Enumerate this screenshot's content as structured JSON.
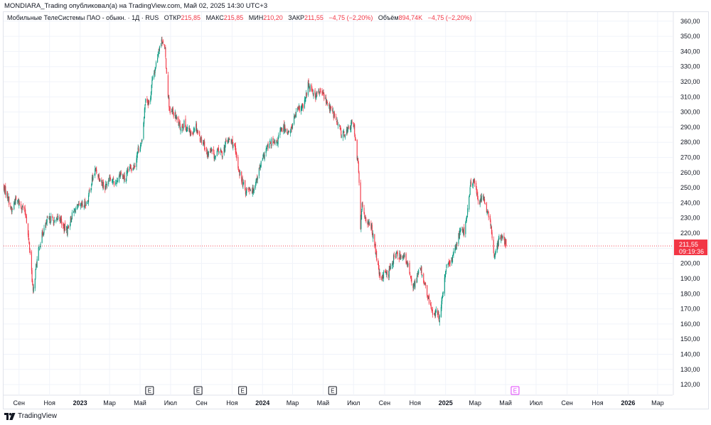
{
  "header": {
    "published": "MONDIARA_Trading опубликовал(а) на TradingView.com, Май 02, 2025 14:30 UTC+3"
  },
  "legend": {
    "symbol": "Мобильные ТелеСистемы ПАО - обыкн. · 1Д · RUS",
    "open_label": "ОТКР",
    "open": "215,85",
    "high_label": "МАКС",
    "high": "215,85",
    "low_label": "МИН",
    "low": "210,20",
    "close_label": "ЗАКР",
    "close": "211,55",
    "change": "−4,75 (−2,20%)",
    "volume_label": "Объём",
    "volume": "894,74K",
    "volume_change": "−4,75 (−2,20%)"
  },
  "price_label": {
    "price": "211,55",
    "countdown": "09:19:36"
  },
  "colors": {
    "up": "#089981",
    "down": "#f23645",
    "grid": "#f0f3fa",
    "earnings_future": "#e040fb"
  },
  "brand": {
    "name": "TradingView",
    "icon": "tradingview-logo-icon"
  },
  "chart_data": {
    "type": "candlestick",
    "title": "Мобильные ТелеСистемы ПАО - обыкн. · 1Д · RUS",
    "y_axis": {
      "ylim": [
        113,
        366
      ],
      "ticks": [
        120,
        130,
        140,
        150,
        160,
        170,
        180,
        190,
        200,
        210,
        220,
        230,
        240,
        250,
        260,
        270,
        280,
        290,
        300,
        310,
        320,
        330,
        340,
        350,
        360
      ],
      "tick_labels": [
        "120,00",
        "130,00",
        "140,00",
        "150,00",
        "160,00",
        "170,00",
        "180,00",
        "190,00",
        "200,00",
        "210,00",
        "220,00",
        "230,00",
        "240,00",
        "250,00",
        "260,00",
        "270,00",
        "280,00",
        "290,00",
        "300,00",
        "310,00",
        "320,00",
        "330,00",
        "340,00",
        "350,00",
        "360,00"
      ],
      "position": "right"
    },
    "x_axis": {
      "range": [
        "2022-08-01",
        "2026-03-31"
      ],
      "ticks": [
        {
          "date": "2022-09-01",
          "label": "Сен",
          "bold": false
        },
        {
          "date": "2022-11-01",
          "label": "Ноя",
          "bold": false
        },
        {
          "date": "2023-01-01",
          "label": "2023",
          "bold": true
        },
        {
          "date": "2023-03-01",
          "label": "Мар",
          "bold": false
        },
        {
          "date": "2023-05-01",
          "label": "Май",
          "bold": false
        },
        {
          "date": "2023-07-01",
          "label": "Июл",
          "bold": false
        },
        {
          "date": "2023-09-01",
          "label": "Сен",
          "bold": false
        },
        {
          "date": "2023-11-01",
          "label": "Ноя",
          "bold": false
        },
        {
          "date": "2024-01-01",
          "label": "2024",
          "bold": true
        },
        {
          "date": "2024-03-01",
          "label": "Мар",
          "bold": false
        },
        {
          "date": "2024-05-01",
          "label": "Май",
          "bold": false
        },
        {
          "date": "2024-07-01",
          "label": "Июл",
          "bold": false
        },
        {
          "date": "2024-09-01",
          "label": "Сен",
          "bold": false
        },
        {
          "date": "2024-11-01",
          "label": "Ноя",
          "bold": false
        },
        {
          "date": "2025-01-01",
          "label": "2025",
          "bold": true
        },
        {
          "date": "2025-03-01",
          "label": "Мар",
          "bold": false
        },
        {
          "date": "2025-05-01",
          "label": "Май",
          "bold": false
        },
        {
          "date": "2025-07-01",
          "label": "Июл",
          "bold": false
        },
        {
          "date": "2025-09-01",
          "label": "Сен",
          "bold": false
        },
        {
          "date": "2025-11-01",
          "label": "Ноя",
          "bold": false
        },
        {
          "date": "2026-01-01",
          "label": "2026",
          "bold": true
        },
        {
          "date": "2026-03-01",
          "label": "Мар",
          "bold": false
        }
      ]
    },
    "current_price": 211.55,
    "earnings_markers": [
      {
        "date": "2023-05-20",
        "label": "E",
        "future": false
      },
      {
        "date": "2023-08-25",
        "label": "E",
        "future": false
      },
      {
        "date": "2023-11-22",
        "label": "E",
        "future": false
      },
      {
        "date": "2024-05-20",
        "label": "E",
        "future": false
      },
      {
        "date": "2025-05-20",
        "label": "E",
        "future": true
      }
    ],
    "price_path": [
      [
        "2022-08-01",
        250
      ],
      [
        "2022-08-10",
        244
      ],
      [
        "2022-08-17",
        234
      ],
      [
        "2022-08-24",
        242
      ],
      [
        "2022-09-01",
        240
      ],
      [
        "2022-09-08",
        237
      ],
      [
        "2022-09-15",
        232
      ],
      [
        "2022-09-20",
        215
      ],
      [
        "2022-09-24",
        205
      ],
      [
        "2022-09-29",
        180
      ],
      [
        "2022-10-05",
        198
      ],
      [
        "2022-10-12",
        212
      ],
      [
        "2022-10-20",
        222
      ],
      [
        "2022-10-28",
        228
      ],
      [
        "2022-11-05",
        230
      ],
      [
        "2022-11-12",
        226
      ],
      [
        "2022-11-20",
        232
      ],
      [
        "2022-11-28",
        224
      ],
      [
        "2022-12-06",
        222
      ],
      [
        "2022-12-14",
        230
      ],
      [
        "2022-12-22",
        236
      ],
      [
        "2023-01-05",
        238
      ],
      [
        "2023-01-15",
        240
      ],
      [
        "2023-01-25",
        255
      ],
      [
        "2023-02-01",
        262
      ],
      [
        "2023-02-10",
        256
      ],
      [
        "2023-02-20",
        250
      ],
      [
        "2023-03-01",
        258
      ],
      [
        "2023-03-12",
        252
      ],
      [
        "2023-03-22",
        260
      ],
      [
        "2023-04-01",
        255
      ],
      [
        "2023-04-10",
        263
      ],
      [
        "2023-04-20",
        265
      ],
      [
        "2023-04-27",
        275
      ],
      [
        "2023-05-05",
        280
      ],
      [
        "2023-05-12",
        310
      ],
      [
        "2023-05-20",
        305
      ],
      [
        "2023-05-25",
        320
      ],
      [
        "2023-06-01",
        330
      ],
      [
        "2023-06-08",
        343
      ],
      [
        "2023-06-15",
        348
      ],
      [
        "2023-06-20",
        340
      ],
      [
        "2023-06-26",
        312
      ],
      [
        "2023-06-30",
        298
      ],
      [
        "2023-07-05",
        300
      ],
      [
        "2023-07-12",
        296
      ],
      [
        "2023-07-20",
        290
      ],
      [
        "2023-07-28",
        292
      ],
      [
        "2023-08-05",
        288
      ],
      [
        "2023-08-12",
        285
      ],
      [
        "2023-08-20",
        292
      ],
      [
        "2023-08-28",
        283
      ],
      [
        "2023-09-05",
        280
      ],
      [
        "2023-09-12",
        272
      ],
      [
        "2023-09-20",
        274
      ],
      [
        "2023-09-28",
        270
      ],
      [
        "2023-10-05",
        275
      ],
      [
        "2023-10-12",
        272
      ],
      [
        "2023-10-20",
        280
      ],
      [
        "2023-10-28",
        282
      ],
      [
        "2023-11-05",
        278
      ],
      [
        "2023-11-12",
        265
      ],
      [
        "2023-11-20",
        255
      ],
      [
        "2023-11-28",
        248
      ],
      [
        "2023-12-05",
        250
      ],
      [
        "2023-12-12",
        248
      ],
      [
        "2023-12-20",
        256
      ],
      [
        "2023-12-28",
        265
      ],
      [
        "2024-01-08",
        275
      ],
      [
        "2024-01-18",
        280
      ],
      [
        "2024-01-28",
        278
      ],
      [
        "2024-02-05",
        287
      ],
      [
        "2024-02-14",
        290
      ],
      [
        "2024-02-24",
        285
      ],
      [
        "2024-03-05",
        297
      ],
      [
        "2024-03-14",
        302
      ],
      [
        "2024-03-24",
        304
      ],
      [
        "2024-04-01",
        318
      ],
      [
        "2024-04-08",
        316
      ],
      [
        "2024-04-14",
        310
      ],
      [
        "2024-04-22",
        313
      ],
      [
        "2024-05-01",
        312
      ],
      [
        "2024-05-10",
        305
      ],
      [
        "2024-05-20",
        300
      ],
      [
        "2024-05-30",
        292
      ],
      [
        "2024-06-08",
        285
      ],
      [
        "2024-06-16",
        287
      ],
      [
        "2024-06-24",
        290
      ],
      [
        "2024-06-30",
        294
      ],
      [
        "2024-07-04",
        285
      ],
      [
        "2024-07-08",
        270
      ],
      [
        "2024-07-11",
        262
      ],
      [
        "2024-07-15",
        222
      ],
      [
        "2024-07-18",
        240
      ],
      [
        "2024-07-23",
        232
      ],
      [
        "2024-07-30",
        226
      ],
      [
        "2024-08-06",
        224
      ],
      [
        "2024-08-13",
        210
      ],
      [
        "2024-08-20",
        195
      ],
      [
        "2024-08-26",
        188
      ],
      [
        "2024-09-02",
        196
      ],
      [
        "2024-09-08",
        192
      ],
      [
        "2024-09-15",
        200
      ],
      [
        "2024-09-22",
        206
      ],
      [
        "2024-10-01",
        205
      ],
      [
        "2024-10-08",
        206
      ],
      [
        "2024-10-15",
        200
      ],
      [
        "2024-10-22",
        194
      ],
      [
        "2024-10-29",
        184
      ],
      [
        "2024-11-05",
        192
      ],
      [
        "2024-11-12",
        196
      ],
      [
        "2024-11-19",
        188
      ],
      [
        "2024-11-26",
        178
      ],
      [
        "2024-12-03",
        170
      ],
      [
        "2024-12-10",
        166
      ],
      [
        "2024-12-15",
        168
      ],
      [
        "2024-12-19",
        164
      ],
      [
        "2024-12-25",
        175
      ],
      [
        "2025-01-03",
        200
      ],
      [
        "2025-01-10",
        198
      ],
      [
        "2025-01-17",
        208
      ],
      [
        "2025-01-24",
        214
      ],
      [
        "2025-02-01",
        225
      ],
      [
        "2025-02-08",
        220
      ],
      [
        "2025-02-15",
        238
      ],
      [
        "2025-02-20",
        252
      ],
      [
        "2025-02-25",
        255
      ],
      [
        "2025-03-03",
        248
      ],
      [
        "2025-03-10",
        240
      ],
      [
        "2025-03-17",
        245
      ],
      [
        "2025-03-24",
        235
      ],
      [
        "2025-03-31",
        228
      ],
      [
        "2025-04-04",
        216
      ],
      [
        "2025-04-08",
        204
      ],
      [
        "2025-04-12",
        212
      ],
      [
        "2025-04-17",
        214
      ],
      [
        "2025-04-22",
        218
      ],
      [
        "2025-04-26",
        216
      ],
      [
        "2025-05-02",
        211.55
      ]
    ]
  }
}
